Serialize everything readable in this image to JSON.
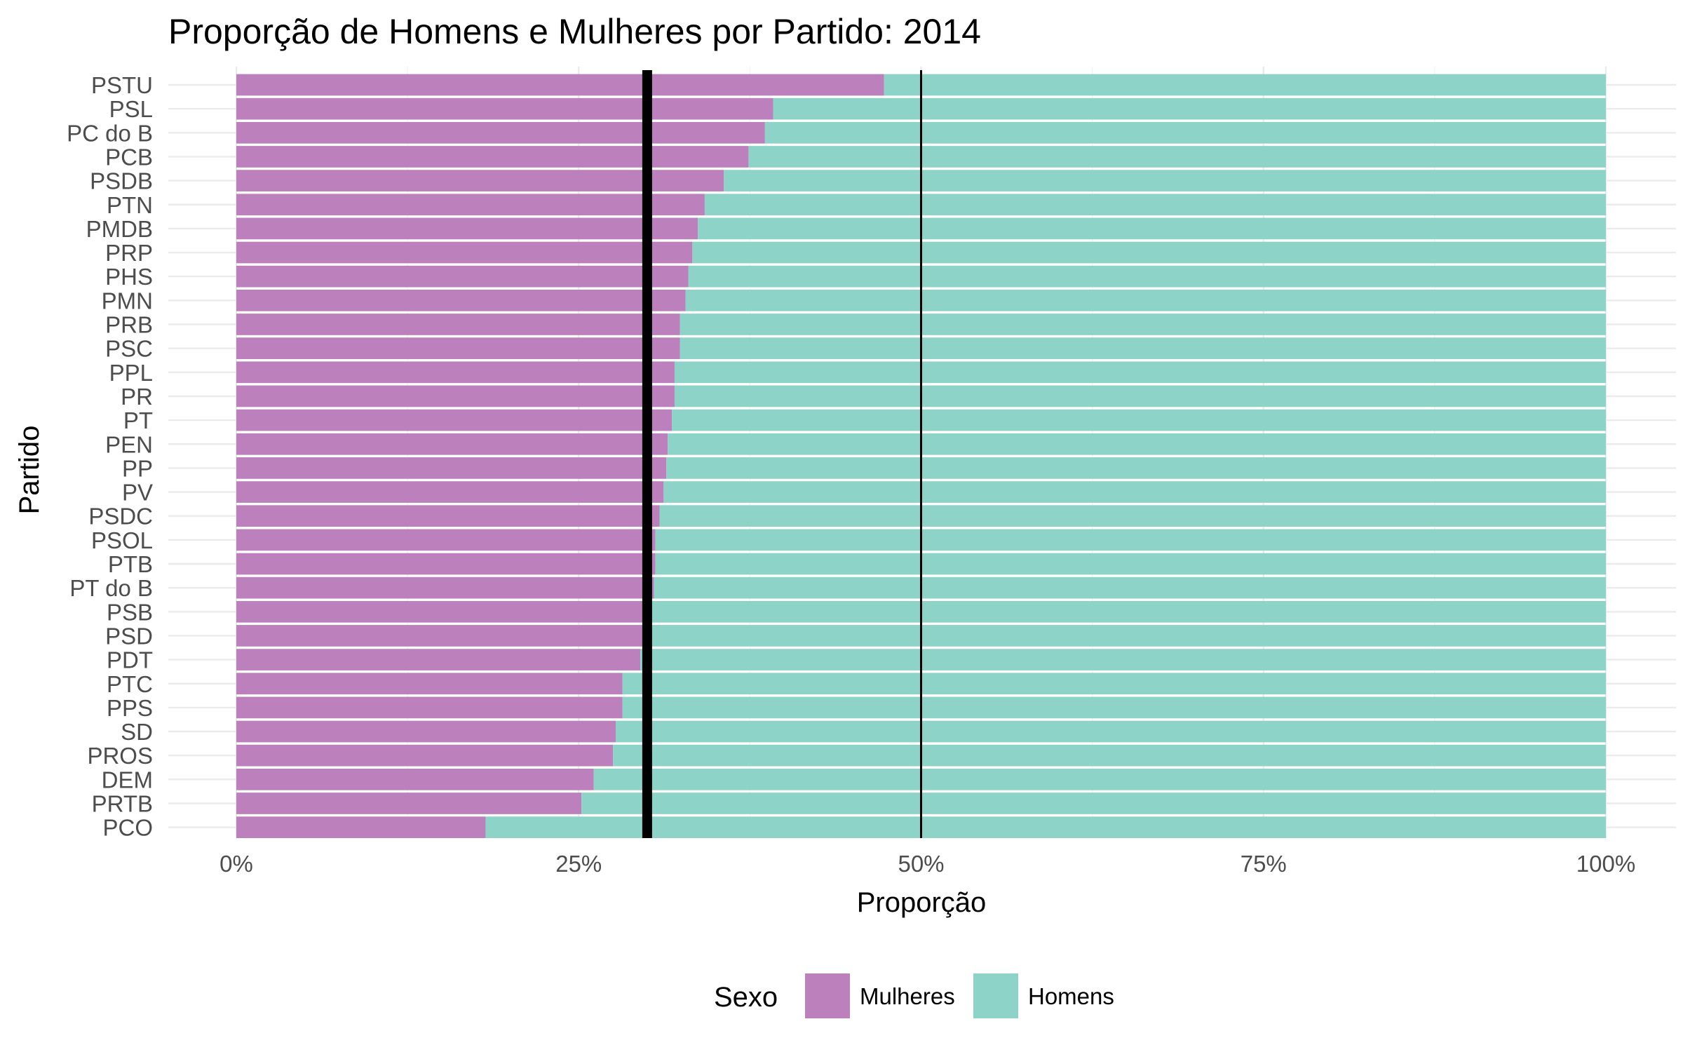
{
  "chart_data": {
    "type": "bar",
    "orientation": "horizontal",
    "stacked": "fill",
    "title": "Proporção de Homens e Mulheres por Partido: 2014",
    "xlabel": "Proporção",
    "ylabel": "Partido",
    "xlim": [
      0,
      1
    ],
    "x_ticks": [
      "0%",
      "25%",
      "50%",
      "75%",
      "100%"
    ],
    "x_tick_values": [
      0,
      0.25,
      0.5,
      0.75,
      1
    ],
    "grid": true,
    "legend": {
      "title": "Sexo",
      "position": "bottom"
    },
    "categories": [
      "PSTU",
      "PSL",
      "PC do B",
      "PCB",
      "PSDB",
      "PTN",
      "PMDB",
      "PRP",
      "PHS",
      "PMN",
      "PRB",
      "PSC",
      "PPL",
      "PR",
      "PT",
      "PEN",
      "PP",
      "PV",
      "PSDC",
      "PSOL",
      "PTB",
      "PT do B",
      "PSB",
      "PSD",
      "PDT",
      "PTC",
      "PPS",
      "SD",
      "PROS",
      "DEM",
      "PRTB",
      "PCO"
    ],
    "series": [
      {
        "name": "Mulheres",
        "color": "#BC80BD",
        "values": [
          0.473,
          0.392,
          0.386,
          0.374,
          0.356,
          0.342,
          0.337,
          0.333,
          0.33,
          0.328,
          0.324,
          0.324,
          0.32,
          0.32,
          0.318,
          0.315,
          0.314,
          0.312,
          0.309,
          0.306,
          0.306,
          0.305,
          0.303,
          0.302,
          0.295,
          0.282,
          0.282,
          0.277,
          0.275,
          0.261,
          0.252,
          0.182
        ]
      },
      {
        "name": "Homens",
        "color": "#8DD3C7",
        "values": [
          0.527,
          0.608,
          0.614,
          0.626,
          0.644,
          0.658,
          0.663,
          0.667,
          0.67,
          0.672,
          0.676,
          0.676,
          0.68,
          0.68,
          0.682,
          0.685,
          0.686,
          0.688,
          0.691,
          0.694,
          0.694,
          0.695,
          0.697,
          0.698,
          0.705,
          0.718,
          0.718,
          0.723,
          0.725,
          0.739,
          0.748,
          0.818
        ]
      }
    ],
    "reference_lines": [
      {
        "value": 0.3,
        "style": "thick"
      },
      {
        "value": 0.5,
        "style": "thin"
      }
    ]
  }
}
